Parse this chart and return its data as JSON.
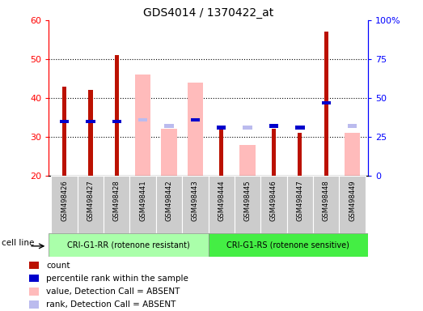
{
  "title": "GDS4014 / 1370422_at",
  "samples": [
    "GSM498426",
    "GSM498427",
    "GSM498428",
    "GSM498441",
    "GSM498442",
    "GSM498443",
    "GSM498444",
    "GSM498445",
    "GSM498446",
    "GSM498447",
    "GSM498448",
    "GSM498449"
  ],
  "group1_label": "CRI-G1-RR (rotenone resistant)",
  "group2_label": "CRI-G1-RS (rotenone sensitive)",
  "group1_count": 6,
  "group2_count": 6,
  "ymin": 20,
  "ymax": 60,
  "yticks_left": [
    20,
    30,
    40,
    50,
    60
  ],
  "yticks_right": [
    0,
    25,
    50,
    75,
    100
  ],
  "count_values": [
    43,
    42,
    51,
    null,
    null,
    null,
    32,
    null,
    32,
    31,
    57,
    null
  ],
  "percentile_values": [
    35,
    35,
    35,
    null,
    null,
    36,
    31,
    null,
    32,
    31,
    47,
    null
  ],
  "absent_value_values": [
    null,
    null,
    null,
    46,
    32,
    44,
    null,
    28,
    null,
    null,
    null,
    31
  ],
  "absent_rank_values": [
    null,
    null,
    null,
    36,
    32,
    36,
    null,
    31,
    null,
    null,
    null,
    32
  ],
  "color_count": "#bb1100",
  "color_percentile": "#0000cc",
  "color_absent_value": "#ffbbbb",
  "color_absent_rank": "#bbbbee",
  "group1_color": "#aaffaa",
  "group2_color": "#44ee44",
  "tick_area_color": "#cccccc",
  "cell_line_label": "cell line",
  "legend_items": [
    {
      "label": "count",
      "color": "#bb1100"
    },
    {
      "label": "percentile rank within the sample",
      "color": "#0000cc"
    },
    {
      "label": "value, Detection Call = ABSENT",
      "color": "#ffbbbb"
    },
    {
      "label": "rank, Detection Call = ABSENT",
      "color": "#bbbbee"
    }
  ]
}
